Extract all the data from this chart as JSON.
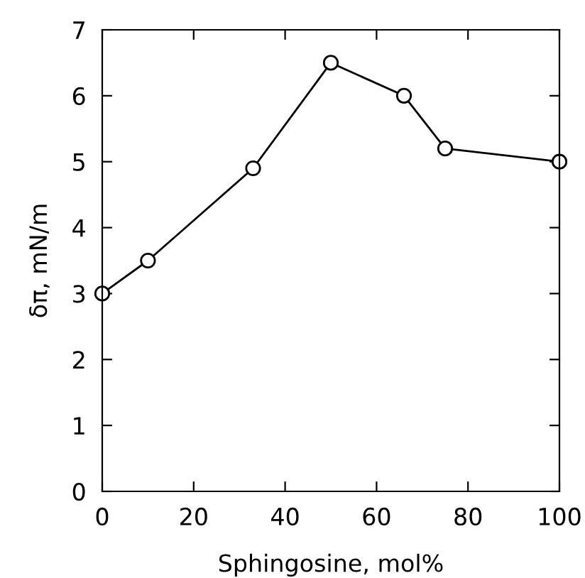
{
  "chart_data": {
    "type": "line",
    "xlabel": "Sphingosine, mol%",
    "ylabel": "δπ, mN/m",
    "x": [
      0,
      10,
      33,
      50,
      66,
      75,
      100
    ],
    "series": [
      {
        "color": "#000000",
        "values": [
          3.0,
          3.5,
          4.9,
          6.5,
          6.0,
          5.2,
          5.0
        ]
      }
    ],
    "xlim": [
      0,
      100
    ],
    "ylim": [
      0,
      7
    ],
    "xticks": [
      0,
      20,
      40,
      60,
      80,
      100
    ],
    "yticks": [
      0,
      1,
      2,
      3,
      4,
      5,
      6,
      7
    ],
    "marker": "circle",
    "line_style": "solid"
  }
}
